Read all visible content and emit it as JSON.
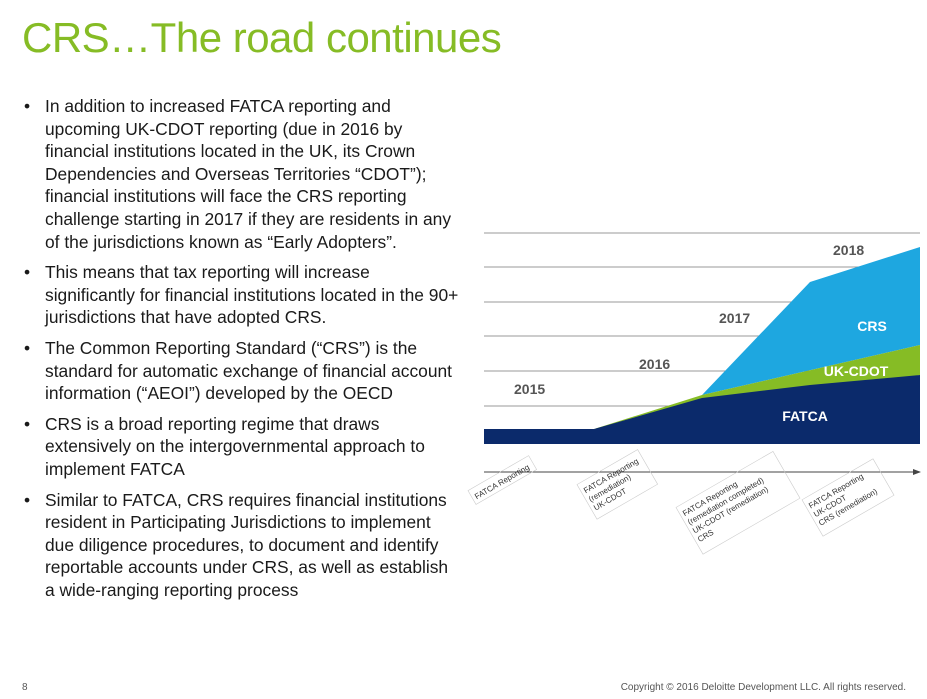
{
  "title": "CRS…The road continues",
  "bullets": [
    "In addition to increased FATCA reporting and upcoming UK-CDOT reporting (due in 2016 by financial institutions located in the UK, its Crown Dependencies and Overseas Territories “CDOT”); financial institutions will face the CRS reporting challenge starting in 2017 if they are residents in any of the jurisdictions known as “Early Adopters”.",
    "This means that tax reporting will increase significantly for financial institutions located in the 90+ jurisdictions that have adopted CRS.",
    "The Common Reporting Standard (“CRS”) is the standard for automatic exchange of financial account information (“AEOI”) developed by the OECD",
    "CRS is a broad reporting regime that draws extensively on the intergovernmental approach to implement FATCA",
    "Similar to FATCA, CRS requires financial institutions resident in Participating Jurisdictions to implement due diligence procedures, to document and identify reportable accounts under CRS, as well as establish a wide-ranging reporting process"
  ],
  "diagram": {
    "years": [
      "2015",
      "2016",
      "2017",
      "2018"
    ],
    "areas": {
      "fatca": {
        "label": "FATCA",
        "color": "#0b2a6b"
      },
      "ukcdot": {
        "label": "UK-CDOT",
        "color": "#86bc25"
      },
      "crs": {
        "label": "CRS",
        "color": "#1ea7e0"
      }
    },
    "timeline_labels": [
      [
        "FATCA Reporting"
      ],
      [
        "FATCA Reporting",
        "(remediation)",
        "UK-CDOT"
      ],
      [
        "FATCA Reporting",
        "(remediation completed)",
        "UK-CDOT (remediation)",
        "CRS"
      ],
      [
        "FATCA Reporting",
        "UK-CDOT",
        "CRS (remediation)"
      ]
    ]
  },
  "footer": {
    "page_number": "8",
    "copyright": "Copyright © 2016 Deloitte Development LLC. All rights reserved."
  }
}
